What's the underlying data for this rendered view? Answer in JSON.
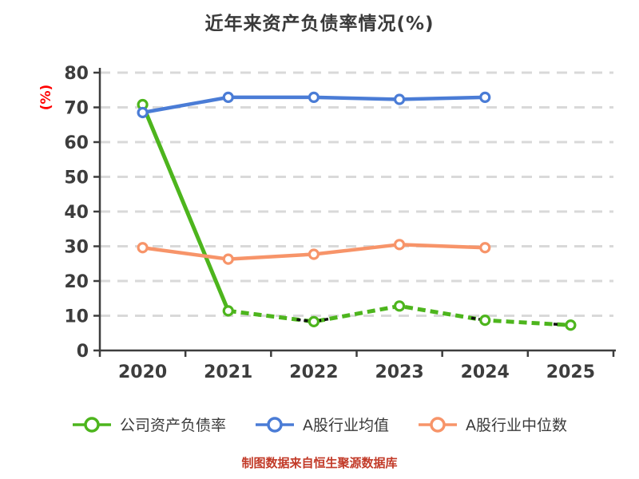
{
  "title": "近年来资产负债率情况(%)",
  "source_note": "制图数据来自恒生聚源数据库",
  "colors": {
    "company": "#4db51d",
    "industry_mean": "#4a7cd6",
    "industry_median": "#f79469",
    "axis": "#3d3d3d",
    "grid": "#d9d9d9",
    "tick_label": "#3d3d3d",
    "y_unit_label": "#ff0000",
    "title_text": "#3a3a3a",
    "source_text": "#c23a28",
    "marker_fill": "#ffffff",
    "artifact": "#111111"
  },
  "chart_data": {
    "type": "line",
    "title": "近年来资产负债率情况(%)",
    "ylabel": "(%)",
    "xlabel": "",
    "x_categories": [
      "2020",
      "2021",
      "2022",
      "2023",
      "2024",
      "2025"
    ],
    "yticks": [
      0,
      10,
      20,
      30,
      40,
      50,
      60,
      70,
      80
    ],
    "ylim": [
      0,
      80
    ],
    "grid": "horizontal-dashed",
    "legend_position": "bottom",
    "series": [
      {
        "name": "公司资产负债率",
        "color": "#4db51d",
        "line_style": "solid-then-dashed",
        "marker": "circle-white-fill",
        "values": [
          70.8,
          11.4,
          8.3,
          12.8,
          8.7,
          7.3
        ]
      },
      {
        "name": "A股行业均值",
        "color": "#4a7cd6",
        "line_style": "solid",
        "marker": "circle-white-fill",
        "values": [
          68.5,
          72.9,
          72.9,
          72.3,
          72.9,
          null
        ]
      },
      {
        "name": "A股行业中位数",
        "color": "#f79469",
        "line_style": "solid",
        "marker": "circle-white-fill",
        "values": [
          29.6,
          26.3,
          27.7,
          30.5,
          29.6,
          null
        ]
      }
    ],
    "dark_dash_artifacts": [
      {
        "points": [
          [
            1.8,
            8.92
          ],
          [
            1.96,
            8.42
          ]
        ]
      },
      {
        "points": [
          [
            2.04,
            8.48
          ],
          [
            2.2,
            9.2
          ]
        ]
      },
      {
        "points": [
          [
            3.84,
            9.36
          ],
          [
            3.97,
            8.83
          ]
        ]
      },
      {
        "points": [
          [
            4.8,
            7.58
          ],
          [
            4.88,
            7.47
          ]
        ]
      }
    ]
  }
}
